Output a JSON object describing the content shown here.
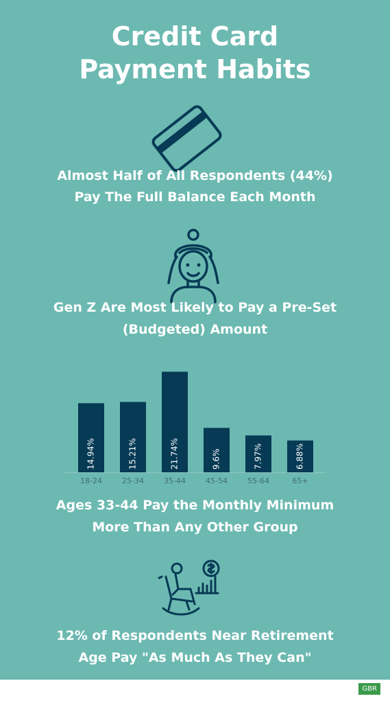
{
  "title": {
    "line1": "Credit Card",
    "line2": "Payment Habits"
  },
  "section1": {
    "line1": "Almost Half of All Respondents (44%)",
    "line2": "Pay The Full Balance Each Month"
  },
  "section2": {
    "line1": "Gen Z Are Most Likely to Pay a Pre-Set",
    "line2": "(Budgeted) Amount"
  },
  "section3": {
    "line1": "Ages 33-44 Pay the Monthly Minimum",
    "line2": "More Than Any Other Group"
  },
  "section4": {
    "line1": "12% of Respondents Near Retirement",
    "line2": "Age Pay \"As Much As They Can\""
  },
  "icons": {
    "card": "credit-card-icon",
    "person": "woman-avatar-icon",
    "retiree": "rocking-chair-retiree-icon"
  },
  "colors": {
    "background": "#6cb9b1",
    "bar": "#063a55",
    "text": "#ffffff",
    "axis_label": "#3d6f70"
  },
  "chart_data": {
    "type": "bar",
    "categories": [
      "18-24",
      "25-34",
      "35-44",
      "45-54",
      "55-64",
      "65+"
    ],
    "values": [
      14.94,
      15.21,
      21.74,
      9.6,
      7.97,
      6.88
    ],
    "data_labels": [
      "14.94%",
      "15.21%",
      "21.74%",
      "9.6%",
      "7.97%",
      "6.88%"
    ],
    "ylim": [
      0,
      23
    ]
  },
  "footer": {
    "badge": "GBR"
  }
}
